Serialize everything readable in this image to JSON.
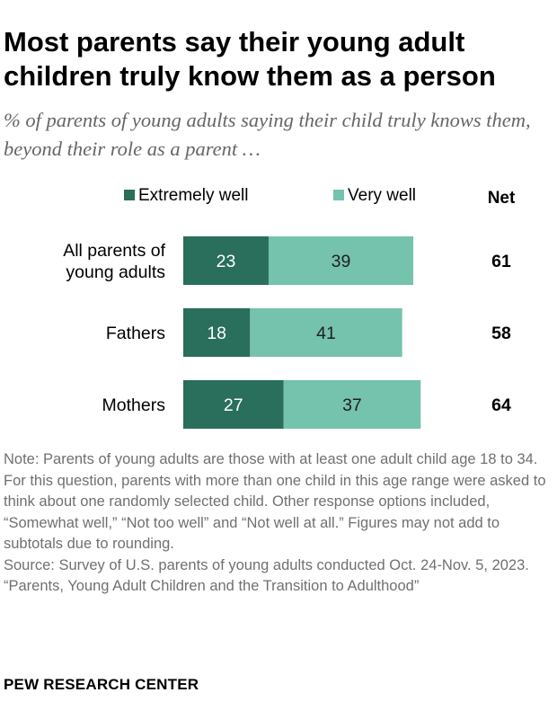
{
  "title": "Most parents say their young adult children truly know them as a person",
  "subtitle": "% of parents of young adults saying their child truly knows them, beyond their role as a parent …",
  "colors": {
    "extremely_well": "#2a6e5c",
    "very_well": "#75c2ad",
    "text": "#000000",
    "note_text": "#707070",
    "subtitle_text": "#666666"
  },
  "chart_data": {
    "type": "bar",
    "orientation": "horizontal",
    "stacked": true,
    "categories": [
      [
        "All parents of",
        "young adults"
      ],
      [
        "Fathers"
      ],
      [
        "Mothers"
      ]
    ],
    "series": [
      {
        "name": "Extremely well",
        "values": [
          23,
          18,
          27
        ],
        "color": "#2a6e5c"
      },
      {
        "name": "Very well",
        "values": [
          39,
          41,
          37
        ],
        "color": "#75c2ad"
      }
    ],
    "net_label": "Net",
    "net_values": [
      61,
      58,
      64
    ],
    "legend_position": "top",
    "grid": false
  },
  "notes": {
    "note": "Note: Parents of young adults are those with at least one adult child age 18 to 34. For this question, parents with more than one child in this age range were asked to think about one randomly selected child. Other response options included, “Somewhat well,” “Not too well” and “Not well at all.” Figures may not add to subtotals due to rounding.",
    "source": "Source: Survey of U.S. parents of young adults conducted Oct. 24-Nov. 5, 2023.",
    "report": "“Parents, Young Adult Children and the Transition to Adulthood”"
  },
  "brand": "PEW RESEARCH CENTER"
}
